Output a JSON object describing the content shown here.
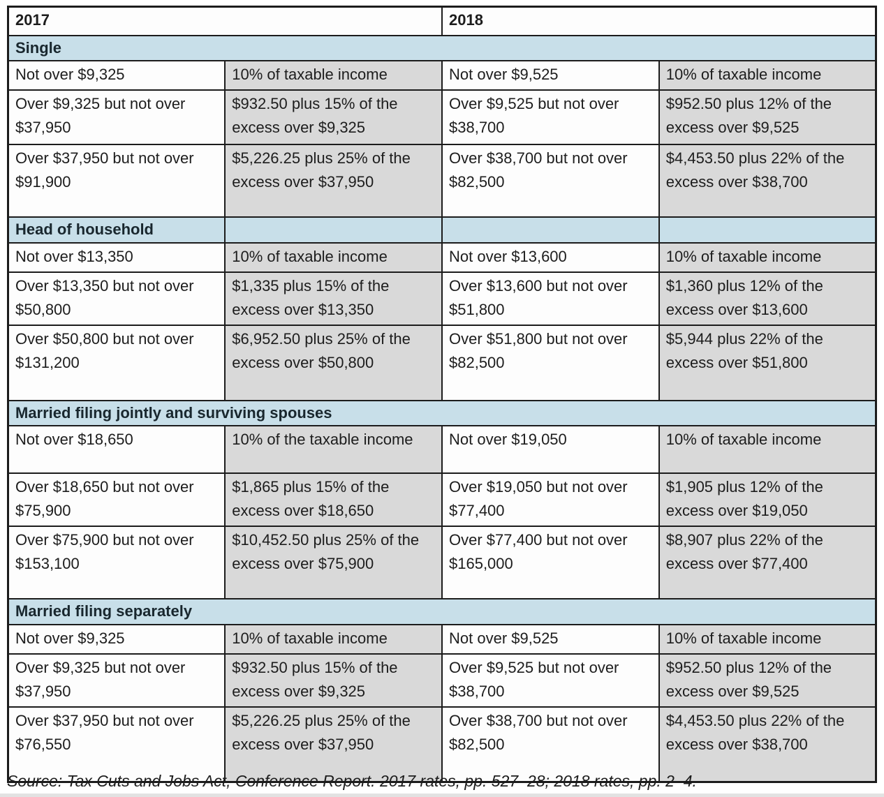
{
  "header": {
    "col_2017": "2017",
    "col_2018": "2018"
  },
  "colors": {
    "section_header_bg": "#c8dfe9",
    "rate_cell_bg": "#d9d9d9",
    "border": "#1c1c1c"
  },
  "sections": [
    {
      "label": "Single",
      "rows": [
        {
          "bracket_2017": "Not over $9,325",
          "rate_2017": "10% of taxable income",
          "bracket_2018": "Not over $9,525",
          "rate_2018": "10% of taxable income"
        },
        {
          "bracket_2017": "Over $9,325 but not over $37,950",
          "rate_2017": "$932.50 plus 15% of the excess over $9,325",
          "bracket_2018": "Over $9,525 but not over $38,700",
          "rate_2018": "$952.50 plus 12% of the excess over $9,525"
        },
        {
          "bracket_2017": "Over $37,950 but not over $91,900",
          "rate_2017": "$5,226.25 plus 25% of the excess over $37,950",
          "bracket_2018": "Over $38,700 but not over $82,500",
          "rate_2018": "$4,453.50 plus 22% of the excess over $38,700"
        }
      ]
    },
    {
      "label": "Head of household",
      "rows": [
        {
          "bracket_2017": "Not over $13,350",
          "rate_2017": "10% of taxable income",
          "bracket_2018": "Not over $13,600",
          "rate_2018": "10% of taxable income"
        },
        {
          "bracket_2017": "Over $13,350 but not over $50,800",
          "rate_2017": "$1,335 plus 15% of the excess over $13,350",
          "bracket_2018": "Over $13,600 but not over $51,800",
          "rate_2018": "$1,360 plus 12% of the excess over $13,600"
        },
        {
          "bracket_2017": "Over $50,800 but not over $131,200",
          "rate_2017": "$6,952.50 plus 25% of the excess over $50,800",
          "bracket_2018": "Over $51,800 but not over $82,500",
          "rate_2018": "$5,944 plus 22% of the excess over $51,800"
        }
      ]
    },
    {
      "label": "Married filing jointly and surviving spouses",
      "rows": [
        {
          "bracket_2017": "Not over $18,650",
          "rate_2017": "10% of the taxable income",
          "bracket_2018": "Not over $19,050",
          "rate_2018": "10% of taxable income"
        },
        {
          "bracket_2017": "Over $18,650 but not over $75,900",
          "rate_2017": "$1,865 plus 15% of the excess over $18,650",
          "bracket_2018": "Over $19,050 but not over $77,400",
          "rate_2018": "$1,905 plus 12% of the excess over $19,050"
        },
        {
          "bracket_2017": "Over $75,900 but not over $153,100",
          "rate_2017": "$10,452.50 plus 25% of the excess over $75,900",
          "bracket_2018": "Over $77,400 but not over $165,000",
          "rate_2018": "$8,907 plus 22% of the excess over $77,400"
        }
      ]
    },
    {
      "label": "Married filing separately",
      "rows": [
        {
          "bracket_2017": "Not over $9,325",
          "rate_2017": "10% of taxable income",
          "bracket_2018": "Not over $9,525",
          "rate_2018": "10% of taxable income"
        },
        {
          "bracket_2017": "Over $9,325 but not over $37,950",
          "rate_2017": "$932.50 plus 15% of the excess over $9,325",
          "bracket_2018": "Over $9,525 but not over $38,700",
          "rate_2018": "$952.50 plus 12% of the excess over $9,525"
        },
        {
          "bracket_2017": "Over $37,950 but not over $76,550",
          "rate_2017": "$5,226.25 plus 25% of the excess over $37,950",
          "bracket_2018": "Over $38,700 but not over $82,500",
          "rate_2018": "$4,453.50 plus 22% of the excess over $38,700"
        }
      ]
    }
  ],
  "source": "Source: Tax Cuts and Jobs Act, Conference Report. 2017 rates, pp. 527–28; 2018 rates, pp. 2–4."
}
